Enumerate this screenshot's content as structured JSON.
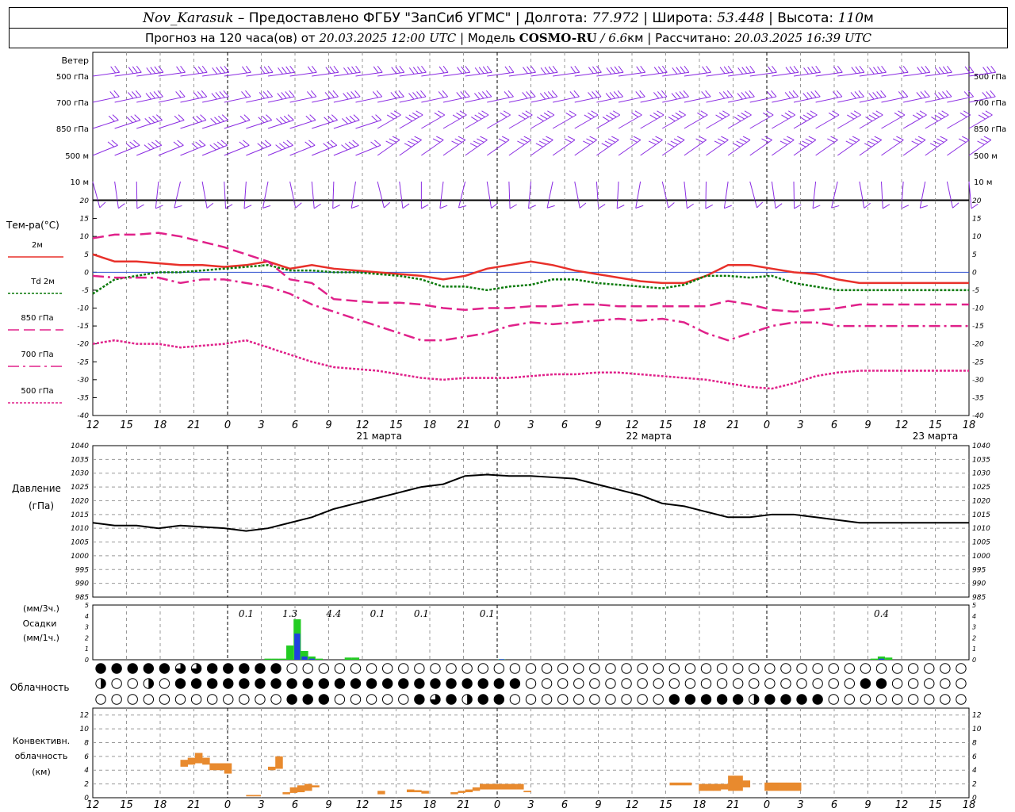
{
  "header": {
    "station": "Nov_Karasuk",
    "provider": "Предоставлено ФГБУ \"ЗапСиб УГМС\"",
    "lon_label": "Долгота:",
    "lon": "77.972",
    "lat_label": "Широта:",
    "lat": "53.448",
    "alt_label": "Высота:",
    "alt": "110",
    "alt_unit": "м",
    "forecast_label": "Прогноз на 120 часа(ов) от",
    "forecast_time": "20.03.2025 12:00 UTC",
    "model_label": "Модель",
    "model": "COSMO-RU",
    "model_res": "/ 6.6",
    "model_res_unit": "км",
    "calc_label": "Рассчитано:",
    "calc_time": "20.03.2025 16:39 UTC"
  },
  "colors": {
    "wind": "#8a2be2",
    "t2m": "#e8302a",
    "td2m": "#0a7a0a",
    "t850": "#e0218a",
    "t700": "#e0218a",
    "t500": "#e0218a",
    "zero_line": "#3050d0",
    "pressure": "#000000",
    "precip_total": "#22cc22",
    "precip_conv": "#2040e0",
    "convective": "#e88a2e",
    "grid": "#999999"
  },
  "time_axis": {
    "hours": [
      "12",
      "15",
      "18",
      "21",
      "0",
      "3",
      "6",
      "9",
      "12",
      "15",
      "18",
      "21",
      "0",
      "3",
      "6",
      "9",
      "12",
      "15",
      "18",
      "21",
      "0",
      "3",
      "6",
      "9",
      "12",
      "15",
      "18"
    ],
    "days": [
      "21 марта",
      "22 марта",
      "23 марта"
    ]
  },
  "wind_panel": {
    "title": "Ветер",
    "levels": [
      "500 гПа",
      "700 гПа",
      "850 гПа",
      "500 м",
      "10  м"
    ],
    "right_levels": [
      "500 гПа",
      "700 гПа",
      "850 гПа",
      "500 м",
      "10  м"
    ]
  },
  "chart_data": [
    {
      "type": "line",
      "title": "Тем-ра(°C)",
      "ylim": [
        -40,
        20
      ],
      "yticks": [
        "20",
        "15",
        "10",
        "5",
        "0",
        "-5",
        "-10",
        "-15",
        "-20",
        "-25",
        "-30",
        "-35",
        "-40"
      ],
      "x": [
        0,
        3,
        6,
        9,
        12,
        15,
        18,
        21,
        24,
        27,
        30,
        33,
        36,
        39,
        42,
        45,
        48,
        51,
        54,
        57,
        60,
        63,
        66,
        69,
        72,
        75,
        78,
        81,
        84,
        87,
        90,
        93,
        96,
        99,
        102,
        105,
        108,
        111,
        114,
        117,
        120
      ],
      "series": [
        {
          "name": "2м",
          "values": [
            5,
            3,
            3,
            2.5,
            2,
            2,
            1.5,
            2,
            3,
            1,
            2,
            1,
            0.5,
            0,
            -0.5,
            -1,
            -2,
            -1,
            1,
            2,
            3,
            2,
            0.5,
            -0.5,
            -1.5,
            -2.5,
            -3,
            -3,
            -1,
            2,
            2,
            1,
            0,
            -0.5,
            -2,
            -3,
            -3,
            -3,
            -3,
            -3,
            -3
          ]
        },
        {
          "name": "Td  2м",
          "values": [
            -6,
            -2,
            -1,
            0,
            0,
            0.5,
            1,
            1.5,
            2,
            0.5,
            0.5,
            0,
            0,
            -0.5,
            -1,
            -2,
            -4,
            -4,
            -5,
            -4,
            -3.5,
            -2,
            -2,
            -3,
            -3.5,
            -4,
            -4.5,
            -3.5,
            -1,
            -1,
            -1.5,
            -1,
            -3,
            -4,
            -5,
            -5,
            -5,
            -5,
            -5,
            -5,
            -5
          ]
        },
        {
          "name": "850 гПа",
          "values": [
            9.5,
            10.5,
            10.5,
            11,
            10,
            8.5,
            7,
            5,
            3,
            -2,
            -3,
            -7.5,
            -8,
            -8.5,
            -8.5,
            -9,
            -10,
            -10.5,
            -10,
            -10,
            -9.5,
            -9.5,
            -9,
            -9,
            -9.5,
            -9.5,
            -9.5,
            -9.5,
            -9.5,
            -8,
            -9,
            -10.5,
            -11,
            -10.5,
            -10,
            -9,
            -9,
            -9,
            -9,
            -9,
            -9
          ]
        },
        {
          "name": "700 гПа",
          "values": [
            -1,
            -1.5,
            -1.5,
            -1.5,
            -3,
            -2,
            -2,
            -3,
            -4,
            -6,
            -9,
            -11,
            -13,
            -15,
            -17,
            -19,
            -19,
            -18,
            -17,
            -15,
            -14,
            -14.5,
            -14,
            -13.5,
            -13,
            -13.5,
            -13,
            -14,
            -17,
            -19,
            -17,
            -15,
            -14,
            -14,
            -15,
            -15,
            -15,
            -15,
            -15,
            -15,
            -15
          ]
        },
        {
          "name": "500 гПа",
          "values": [
            -20,
            -19,
            -20,
            -20,
            -21,
            -20.5,
            -20,
            -19,
            -21,
            -23,
            -25,
            -26.5,
            -27,
            -27.5,
            -28.5,
            -29.5,
            -30,
            -29.5,
            -29.5,
            -29.5,
            -29,
            -28.5,
            -28.5,
            -28,
            -28,
            -28.5,
            -29,
            -29.5,
            -30,
            -31,
            -32,
            -32.5,
            -31,
            -29,
            -28,
            -27.5,
            -27.5,
            -27.5,
            -27.5,
            -27.5,
            -27.5
          ]
        }
      ]
    },
    {
      "type": "line",
      "title": "Давление",
      "ylabel": "(гПа)",
      "ylim": [
        985,
        1040
      ],
      "yticks": [
        "1040",
        "1035",
        "1030",
        "1025",
        "1020",
        "1015",
        "1010",
        "1005",
        "1000",
        "995",
        "990",
        "985"
      ],
      "x": [
        0,
        3,
        6,
        9,
        12,
        15,
        18,
        21,
        24,
        27,
        30,
        33,
        36,
        39,
        42,
        45,
        48,
        51,
        54,
        57,
        60,
        63,
        66,
        69,
        72,
        75,
        78,
        81,
        84,
        87,
        90,
        93,
        96,
        99,
        102,
        105,
        108,
        111,
        114,
        117,
        120
      ],
      "series": [
        {
          "name": "Давление",
          "values": [
            1012,
            1011,
            1011,
            1010,
            1011,
            1010.5,
            1010,
            1009,
            1010,
            1012,
            1014,
            1017,
            1019,
            1021,
            1023,
            1025,
            1026,
            1029,
            1029.5,
            1029,
            1029,
            1028.5,
            1028,
            1026,
            1024,
            1022,
            1019,
            1018,
            1016,
            1014,
            1014,
            1015,
            1015,
            1014,
            1013,
            1012,
            1012,
            1012,
            1012,
            1012,
            1012
          ]
        }
      ]
    },
    {
      "type": "bar",
      "title": "Осадки",
      "ylabel_top": "(мм/3ч.)",
      "ylabel_bottom": "(мм/1ч.)",
      "ylim": [
        0,
        5
      ],
      "yticks": [
        "5",
        "4",
        "3",
        "2",
        "1",
        "0"
      ],
      "totals": [
        {
          "x": 21,
          "label": "0.1"
        },
        {
          "x": 27,
          "label": "1.3"
        },
        {
          "x": 33,
          "label": "4.4"
        },
        {
          "x": 39,
          "label": "0.1"
        },
        {
          "x": 45,
          "label": "0.1"
        },
        {
          "x": 54,
          "label": "0.1"
        },
        {
          "x": 108,
          "label": "0.4"
        }
      ],
      "series": [
        {
          "name": "total",
          "bars": [
            [
              24,
              0.1
            ],
            [
              25,
              0.1
            ],
            [
              26,
              0.1
            ],
            [
              27,
              1.3
            ],
            [
              28,
              3.7
            ],
            [
              29,
              0.8
            ],
            [
              30,
              0.3
            ],
            [
              31,
              0.1
            ],
            [
              35,
              0.2
            ],
            [
              36,
              0.2
            ],
            [
              56,
              0.05
            ],
            [
              107,
              0.1
            ],
            [
              108,
              0.3
            ],
            [
              109,
              0.2
            ]
          ]
        },
        {
          "name": "convective",
          "bars": [
            [
              28,
              2.4
            ],
            [
              29,
              0.3
            ],
            [
              30,
              0.1
            ],
            [
              56,
              0.05
            ],
            [
              108,
              0.1
            ]
          ]
        }
      ]
    },
    {
      "type": "bar",
      "title": "Конвективн. облачность",
      "ylabel": "(км)",
      "ylim": [
        0,
        13
      ],
      "yticks": [
        "12",
        "10",
        "8",
        "6",
        "4",
        "2",
        "0"
      ],
      "series": [
        {
          "name": "clouds",
          "bars": [
            [
              12,
              4.5,
              5.5
            ],
            [
              13,
              4.8,
              5.8
            ],
            [
              14,
              5,
              6.5
            ],
            [
              15,
              4.8,
              5.8
            ],
            [
              16,
              4,
              5
            ],
            [
              17,
              4,
              5
            ],
            [
              18,
              3.5,
              5
            ],
            [
              21,
              0.2,
              0.4
            ],
            [
              22,
              0.2,
              0.4
            ],
            [
              24,
              4,
              4.5
            ],
            [
              25,
              4.2,
              6
            ],
            [
              26,
              0.5,
              0.8
            ],
            [
              27,
              0.7,
              1.5
            ],
            [
              28,
              0.8,
              1.8
            ],
            [
              29,
              1,
              2
            ],
            [
              30,
              1.5,
              1.8
            ],
            [
              39,
              0.5,
              1
            ],
            [
              43,
              0.8,
              1.2
            ],
            [
              44,
              0.8,
              1.1
            ],
            [
              45,
              0.6,
              1
            ],
            [
              49,
              0.5,
              0.8
            ],
            [
              50,
              0.7,
              1
            ],
            [
              51,
              0.8,
              1.2
            ],
            [
              52,
              1,
              1.5
            ],
            [
              53,
              1.2,
              2
            ],
            [
              54,
              1.2,
              2
            ],
            [
              55,
              1.2,
              2
            ],
            [
              56,
              1.2,
              2
            ],
            [
              57,
              1.2,
              2
            ],
            [
              58,
              1.2,
              2
            ],
            [
              59,
              0.8,
              1
            ],
            [
              79,
              1.8,
              2.2
            ],
            [
              80,
              1.8,
              2.2
            ],
            [
              81,
              1.8,
              2.2
            ],
            [
              83,
              1,
              2
            ],
            [
              84,
              1,
              2
            ],
            [
              85,
              1,
              2
            ],
            [
              86,
              1.2,
              2
            ],
            [
              87,
              1,
              3.2
            ],
            [
              88,
              1,
              3.2
            ],
            [
              89,
              1.5,
              2.5
            ],
            [
              92,
              1,
              2.2
            ],
            [
              93,
              1,
              2.2
            ],
            [
              94,
              1,
              2.2
            ],
            [
              95,
              1,
              2.2
            ],
            [
              96,
              1,
              2.2
            ]
          ]
        }
      ]
    }
  ],
  "panels": {
    "temp": {
      "title": "Тем-ра(°C)",
      "legend": [
        "2м",
        "Td  2м",
        "850 гПа",
        "700 гПа",
        "500 гПа"
      ]
    },
    "clouds": {
      "title": "Облачность",
      "rows": [
        [
          4,
          4,
          4,
          4,
          4,
          4,
          4,
          4,
          4,
          4,
          3,
          3,
          3,
          3,
          3,
          3,
          4,
          4,
          4,
          4,
          4,
          4,
          4,
          4,
          4,
          4,
          4,
          0,
          0,
          0,
          0,
          0,
          0,
          0,
          0,
          0,
          0,
          0,
          0,
          0,
          0,
          0,
          0,
          0,
          0,
          0,
          0,
          0,
          0,
          0,
          0,
          0,
          0,
          0,
          0,
          0,
          0,
          0,
          0,
          0,
          0,
          0,
          0,
          0,
          0,
          0,
          0,
          0,
          0,
          0,
          0,
          0,
          0,
          0,
          0,
          0,
          0,
          0,
          0,
          0,
          0,
          0,
          0,
          0,
          0,
          0,
          0,
          0,
          0,
          0,
          0,
          0,
          0,
          0,
          0,
          0,
          0,
          0,
          0,
          0,
          0,
          0,
          0,
          0,
          0,
          0,
          0,
          0,
          0,
          0,
          0,
          0,
          0,
          0,
          0,
          0,
          0,
          0,
          0,
          0,
          0,
          0,
          0,
          0,
          0,
          0,
          0
        ],
        [
          2,
          0,
          0,
          2,
          0,
          0,
          2,
          0,
          0,
          0,
          4,
          4,
          4,
          4,
          4,
          4,
          4,
          4,
          4,
          4,
          4,
          4,
          4,
          4,
          4,
          4,
          4,
          4,
          4,
          4,
          4,
          4,
          4,
          4,
          4,
          4,
          4,
          4,
          4,
          4,
          4,
          4,
          4,
          4,
          4,
          4,
          4,
          4,
          4,
          4,
          4,
          4,
          4,
          4,
          4,
          4,
          4,
          4,
          4,
          4,
          4,
          4,
          0,
          0,
          0,
          0,
          0,
          0,
          0,
          0,
          0,
          0,
          0,
          0,
          0,
          0,
          0,
          0,
          0,
          0,
          0,
          0,
          0,
          0,
          0,
          0,
          0,
          0,
          0,
          0,
          0,
          0,
          0,
          0,
          0,
          0,
          0,
          0,
          0,
          0,
          0,
          0,
          0,
          0,
          0,
          0,
          0,
          0,
          0,
          0,
          0,
          4,
          4,
          4,
          4,
          0,
          0,
          0,
          0,
          0,
          0,
          0,
          0,
          0,
          0,
          0,
          0,
          0
        ],
        [
          0,
          0,
          0,
          0,
          0,
          0,
          0,
          0,
          0,
          0,
          0,
          0,
          0,
          0,
          0,
          0,
          0,
          0,
          0,
          0,
          0,
          0,
          0,
          0,
          0,
          0,
          2,
          4,
          4,
          4,
          4,
          4,
          4,
          3,
          0,
          2,
          0,
          4,
          0,
          0,
          0,
          0,
          0,
          0,
          4,
          4,
          4,
          4,
          3,
          4,
          4,
          2,
          4,
          2,
          0,
          4,
          4,
          4,
          0,
          0,
          0,
          0,
          0,
          0,
          0,
          0,
          0,
          0,
          0,
          0,
          0,
          0,
          0,
          0,
          0,
          0,
          0,
          0,
          0,
          0,
          0,
          0,
          0,
          4,
          4,
          4,
          4,
          4,
          4,
          4,
          4,
          4,
          4,
          4,
          2,
          4,
          4,
          4,
          4,
          4,
          4,
          4,
          4,
          4,
          4,
          3,
          0,
          0,
          0,
          0,
          0,
          0,
          0,
          0,
          0,
          0,
          0,
          0,
          0,
          0,
          0,
          0,
          0,
          0,
          0,
          0,
          0
        ]
      ]
    }
  }
}
